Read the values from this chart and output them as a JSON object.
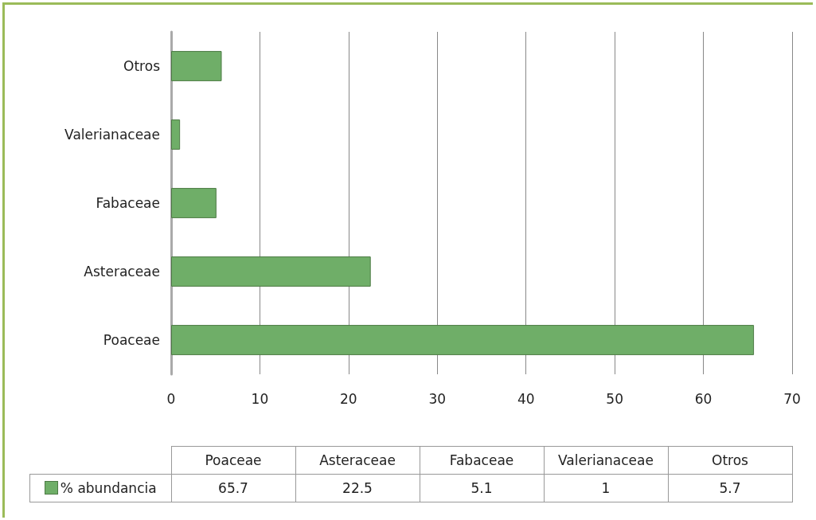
{
  "chart_data": [
    {
      "type": "bar",
      "orientation": "horizontal",
      "categories": [
        "Otros",
        "Valerianaceae",
        "Fabaceae",
        "Asteraceae",
        "Poaceae"
      ],
      "series": [
        {
          "color": "#6fae68",
          "values": [
            5.7,
            1,
            5.1,
            22.5,
            65.7
          ]
        }
      ],
      "xlim": [
        0,
        70
      ],
      "xticks": [
        0,
        10,
        20,
        30,
        40,
        50,
        60,
        70
      ],
      "grid": "x"
    },
    {
      "type": "other",
      "categories": [
        "Poaceae",
        "Asteraceae",
        "Fabaceae",
        "Valerianaceae",
        "Otros"
      ],
      "series": [
        {
          "name": "% abundancia",
          "color": "#6fae68",
          "values": [
            65.7,
            22.5,
            5.1,
            1,
            5.7
          ]
        }
      ],
      "data_labels": true
    }
  ]
}
